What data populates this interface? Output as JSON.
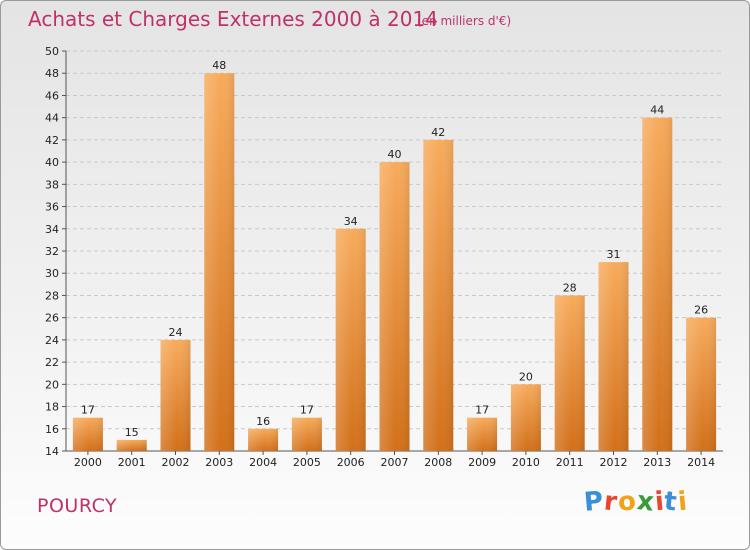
{
  "header": {
    "title": "Achats et Charges Externes 2000 à 2014",
    "unit": "(en milliers d'€)"
  },
  "footer": {
    "commune": "POURCY",
    "logo": "Proxiti"
  },
  "colors": {
    "title": "#c0306a",
    "bar_light": "#f6a654",
    "bar_dark": "#d4731c",
    "grid": "#c8c8c8"
  },
  "chart_data": {
    "type": "bar",
    "title": "Achats et Charges Externes 2000 à 2014",
    "subtitle": "(en milliers d'€)",
    "xlabel": "",
    "ylabel": "",
    "categories": [
      "2000",
      "2001",
      "2002",
      "2003",
      "2004",
      "2005",
      "2006",
      "2007",
      "2008",
      "2009",
      "2010",
      "2011",
      "2012",
      "2013",
      "2014"
    ],
    "values": [
      17,
      15,
      24,
      48,
      16,
      17,
      34,
      40,
      42,
      17,
      20,
      28,
      31,
      44,
      26
    ],
    "ylim": [
      14,
      50
    ],
    "yticks": [
      14,
      16,
      18,
      20,
      22,
      24,
      26,
      28,
      30,
      32,
      34,
      36,
      38,
      40,
      42,
      44,
      46,
      48,
      50
    ],
    "grid": true
  }
}
